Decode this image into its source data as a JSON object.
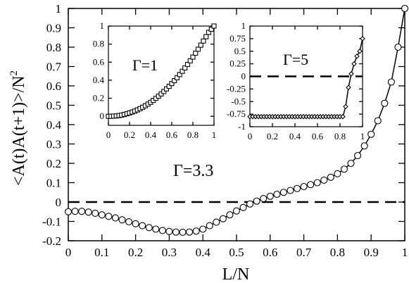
{
  "chart_data": [
    {
      "id": "main",
      "type": "line",
      "xlabel": "L/N",
      "ylabel": "<A(t)A(t+1)>/N",
      "ylabel_superscript": "2",
      "annotation": "Γ=3.3",
      "xlim": [
        0,
        1
      ],
      "ylim": [
        -0.2,
        1
      ],
      "xticks": [
        0,
        0.1,
        0.2,
        0.3,
        0.4,
        0.5,
        0.6,
        0.7,
        0.8,
        0.9,
        1
      ],
      "xtick_labels": [
        "0",
        "0.1",
        "0.2",
        "0.3",
        "0.4",
        "0.5",
        "0.6",
        "0.7",
        "0.8",
        "0.9",
        "1"
      ],
      "yticks": [
        -0.2,
        -0.1,
        0,
        0.1,
        0.2,
        0.3,
        0.4,
        0.5,
        0.6,
        0.7,
        0.8,
        0.9,
        1
      ],
      "ytick_labels": [
        "-0.2",
        "-0.1",
        "0",
        "0.1",
        "0.2",
        "0.3",
        "0.4",
        "0.5",
        "0.6",
        "0.7",
        "0.8",
        "0.9",
        "1"
      ],
      "reference_line_y": 0,
      "marker": "circle",
      "series": [
        {
          "x": [
            0,
            0.02,
            0.04,
            0.06,
            0.08,
            0.1,
            0.12,
            0.14,
            0.16,
            0.18,
            0.2,
            0.22,
            0.24,
            0.26,
            0.28,
            0.3,
            0.32,
            0.34,
            0.36,
            0.38,
            0.4,
            0.42,
            0.44,
            0.46,
            0.48,
            0.5,
            0.52,
            0.54,
            0.56,
            0.58,
            0.6,
            0.62,
            0.64,
            0.66,
            0.68,
            0.7,
            0.72,
            0.74,
            0.76,
            0.78,
            0.8,
            0.82,
            0.84,
            0.86,
            0.88,
            0.9,
            0.92,
            0.94,
            0.96,
            0.98,
            1.0
          ],
          "y": [
            -0.05,
            -0.048,
            -0.048,
            -0.052,
            -0.058,
            -0.066,
            -0.074,
            -0.082,
            -0.092,
            -0.102,
            -0.112,
            -0.122,
            -0.132,
            -0.14,
            -0.147,
            -0.152,
            -0.155,
            -0.156,
            -0.155,
            -0.15,
            -0.14,
            -0.122,
            -0.104,
            -0.086,
            -0.066,
            -0.046,
            -0.028,
            -0.01,
            0.005,
            0.018,
            0.03,
            0.04,
            0.05,
            0.06,
            0.07,
            0.08,
            0.09,
            0.1,
            0.113,
            0.128,
            0.146,
            0.17,
            0.2,
            0.24,
            0.29,
            0.35,
            0.42,
            0.51,
            0.62,
            0.8,
            1.0
          ]
        }
      ]
    },
    {
      "id": "inset-gamma-1",
      "type": "line",
      "annotation": "Γ=1",
      "xlim": [
        0,
        1
      ],
      "ylim": [
        -0.1,
        1
      ],
      "xticks": [
        0,
        0.2,
        0.4,
        0.6,
        0.8,
        1
      ],
      "xtick_labels": [
        "0",
        "0.2",
        "0.4",
        "0.6",
        "0.8",
        "1"
      ],
      "yticks": [
        0,
        0.2,
        0.4,
        0.6,
        0.8,
        1
      ],
      "ytick_labels": [
        "0",
        "0.2",
        "0.4",
        "0.6",
        "0.8",
        "1"
      ],
      "marker": "square",
      "series": [
        {
          "x": [
            0,
            0.025,
            0.05,
            0.075,
            0.1,
            0.125,
            0.15,
            0.175,
            0.2,
            0.225,
            0.25,
            0.275,
            0.3,
            0.325,
            0.35,
            0.375,
            0.4,
            0.425,
            0.45,
            0.475,
            0.5,
            0.525,
            0.55,
            0.575,
            0.6,
            0.625,
            0.65,
            0.675,
            0.7,
            0.725,
            0.75,
            0.775,
            0.8,
            0.825,
            0.85,
            0.875,
            0.9,
            0.925,
            0.95,
            0.975,
            1.0
          ],
          "y": [
            0,
            0,
            0.002,
            0.004,
            0.008,
            0.013,
            0.02,
            0.028,
            0.037,
            0.047,
            0.058,
            0.071,
            0.085,
            0.1,
            0.117,
            0.135,
            0.155,
            0.176,
            0.199,
            0.223,
            0.248,
            0.275,
            0.303,
            0.332,
            0.363,
            0.395,
            0.428,
            0.463,
            0.499,
            0.536,
            0.575,
            0.615,
            0.656,
            0.699,
            0.743,
            0.788,
            0.834,
            0.882,
            0.93,
            0.965,
            1.0
          ]
        }
      ]
    },
    {
      "id": "inset-gamma-5",
      "type": "line",
      "annotation": "Γ=5",
      "xlim": [
        0,
        1
      ],
      "ylim": [
        -1,
        1
      ],
      "xticks": [
        0,
        0.2,
        0.4,
        0.6,
        0.8,
        1
      ],
      "xtick_labels": [
        "0",
        "0.2",
        "0.4",
        "0.6",
        "0.8",
        "1"
      ],
      "yticks": [
        -1,
        -0.75,
        -0.5,
        -0.25,
        0,
        0.25,
        0.5,
        0.75,
        1
      ],
      "ytick_labels": [
        "-1",
        "-0.75",
        "-0.5",
        "-0.25",
        "0",
        "0.25",
        "0.5",
        "0.75",
        "1"
      ],
      "reference_line_y": 0,
      "marker": "diamond",
      "series": [
        {
          "x": [
            0,
            0.025,
            0.05,
            0.075,
            0.1,
            0.125,
            0.15,
            0.175,
            0.2,
            0.225,
            0.25,
            0.275,
            0.3,
            0.325,
            0.35,
            0.375,
            0.4,
            0.425,
            0.45,
            0.475,
            0.5,
            0.525,
            0.55,
            0.575,
            0.6,
            0.625,
            0.65,
            0.675,
            0.7,
            0.725,
            0.75,
            0.775,
            0.8,
            0.825,
            0.85,
            0.875,
            0.9,
            0.925,
            0.95,
            0.975,
            1.0
          ],
          "y": [
            -0.8,
            -0.8,
            -0.8,
            -0.8,
            -0.8,
            -0.8,
            -0.8,
            -0.8,
            -0.8,
            -0.8,
            -0.8,
            -0.8,
            -0.8,
            -0.8,
            -0.8,
            -0.8,
            -0.8,
            -0.8,
            -0.8,
            -0.8,
            -0.8,
            -0.8,
            -0.8,
            -0.8,
            -0.8,
            -0.8,
            -0.8,
            -0.8,
            -0.8,
            -0.8,
            -0.8,
            -0.8,
            -0.8,
            -0.8,
            -0.6,
            -0.22,
            0.05,
            0.25,
            0.4,
            0.5,
            0.75
          ]
        }
      ]
    }
  ]
}
